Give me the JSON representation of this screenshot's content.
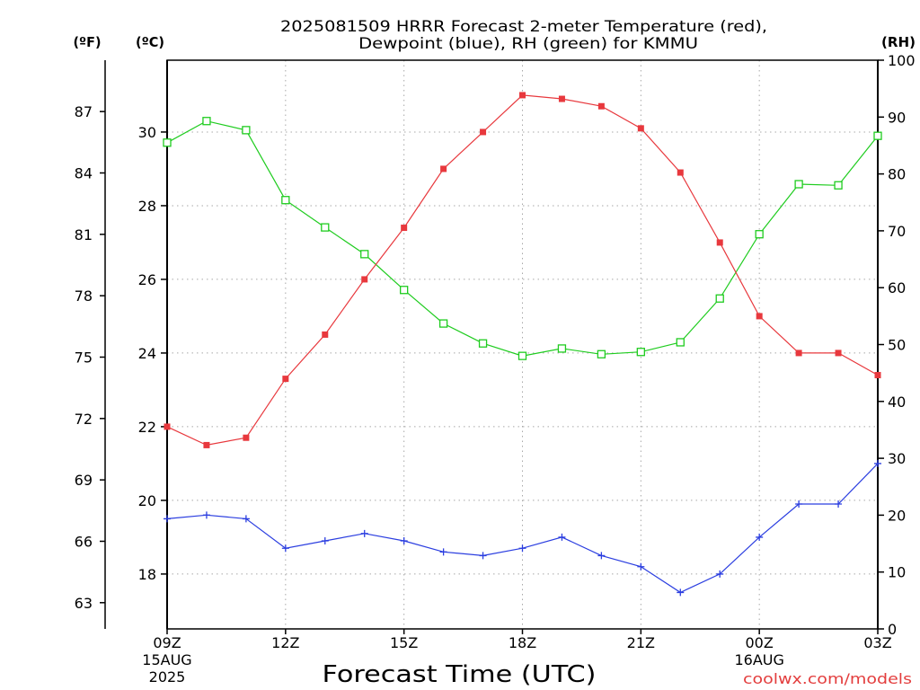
{
  "chart_data": {
    "type": "line",
    "title": [
      "2025081509 HRRR Forecast 2-meter Temperature (red),",
      "Dewpoint (blue), RH (green) for KMMU"
    ],
    "xlabel": "Forecast Time (UTC)",
    "x_hour_utc": [
      9,
      10,
      11,
      12,
      13,
      14,
      15,
      16,
      17,
      18,
      19,
      20,
      21,
      22,
      23,
      0,
      1,
      2,
      3
    ],
    "x_ticks": [
      {
        "label": "09Z",
        "date": [
          "15AUG",
          "2025"
        ]
      },
      {
        "label": "12Z"
      },
      {
        "label": "15Z"
      },
      {
        "label": "18Z"
      },
      {
        "label": "21Z"
      },
      {
        "label": "00Z",
        "date": [
          "16AUG"
        ]
      },
      {
        "label": "03Z"
      }
    ],
    "axes": {
      "fahrenheit": {
        "label": "(ºF)",
        "ticks": [
          63,
          66,
          69,
          72,
          75,
          78,
          81,
          84,
          87
        ]
      },
      "celsius": {
        "label": "(ºC)",
        "ticks": [
          18,
          20,
          22,
          24,
          26,
          28,
          30
        ],
        "range": [
          16.51,
          31.95
        ]
      },
      "rh": {
        "label": "(RH)",
        "ticks": [
          0,
          10,
          20,
          30,
          40,
          50,
          60,
          70,
          80,
          90,
          100
        ],
        "range": [
          0,
          100
        ]
      }
    },
    "grid": true,
    "series": {
      "temperature": {
        "color": "#e8383d",
        "values": [
          22.0,
          21.5,
          21.7,
          23.3,
          24.5,
          26.0,
          27.4,
          29.0,
          30.0,
          31.0,
          30.9,
          30.7,
          30.1,
          28.9,
          27.0,
          25.0,
          24.0,
          24.0,
          23.4
        ]
      },
      "dewpoint": {
        "color": "#2b3ee0",
        "values": [
          19.5,
          19.6,
          19.5,
          18.7,
          18.9,
          19.1,
          18.9,
          18.6,
          18.5,
          18.7,
          19.0,
          18.5,
          18.2,
          17.5,
          18.0,
          19.0,
          19.9,
          19.9,
          21.0
        ]
      },
      "rh": {
        "color": "#1fcc1f",
        "values": [
          85.5,
          89.3,
          87.7,
          75.4,
          70.6,
          65.9,
          59.6,
          53.7,
          50.2,
          48.0,
          49.3,
          48.3,
          48.7,
          50.4,
          58.1,
          69.4,
          78.2,
          78.0,
          86.7
        ]
      }
    }
  },
  "credit": "coolwx.com/models",
  "colors": {
    "credit": "#e33d3d"
  }
}
